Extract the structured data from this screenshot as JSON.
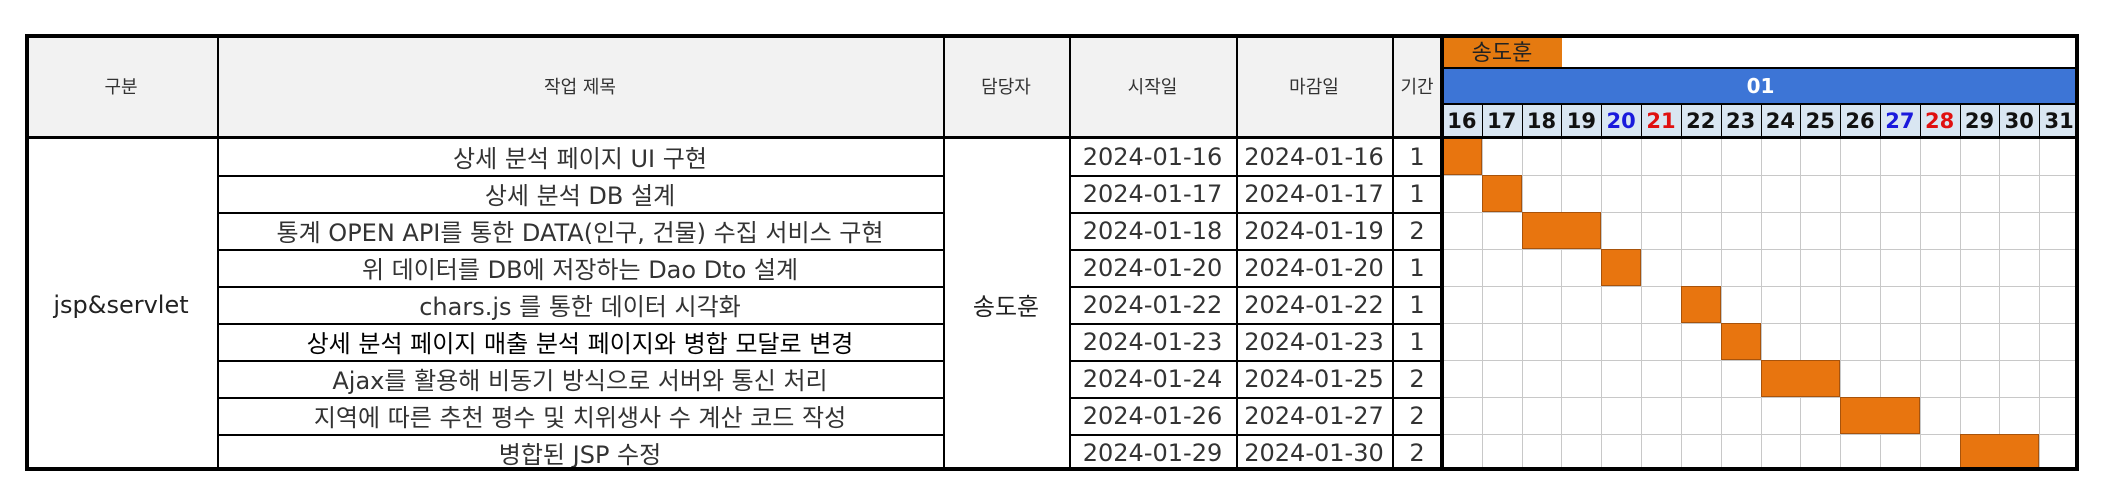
{
  "header": {
    "category": "구분",
    "task_title": "작업 제목",
    "assignee": "담당자",
    "start_date": "시작일",
    "due_date": "마감일",
    "duration": "기간",
    "gantt_owner": "송도훈",
    "month": "01",
    "days": [
      {
        "label": "16",
        "color": "#111111"
      },
      {
        "label": "17",
        "color": "#111111"
      },
      {
        "label": "18",
        "color": "#111111"
      },
      {
        "label": "19",
        "color": "#111111"
      },
      {
        "label": "20",
        "color": "#1a1adc"
      },
      {
        "label": "21",
        "color": "#e01010"
      },
      {
        "label": "22",
        "color": "#111111"
      },
      {
        "label": "23",
        "color": "#111111"
      },
      {
        "label": "24",
        "color": "#111111"
      },
      {
        "label": "25",
        "color": "#111111"
      },
      {
        "label": "26",
        "color": "#111111"
      },
      {
        "label": "27",
        "color": "#1a1adc"
      },
      {
        "label": "28",
        "color": "#e01010"
      },
      {
        "label": "29",
        "color": "#111111"
      },
      {
        "label": "30",
        "color": "#111111"
      },
      {
        "label": "31",
        "color": "#111111"
      }
    ]
  },
  "category": "jsp&servlet",
  "assignee": "송도훈",
  "colors": {
    "bar": "#e8750f",
    "month_header": "#3d75d6",
    "day_header": "#d9e6f2"
  },
  "tasks": [
    {
      "title": "상세 분석 페이지 UI 구현",
      "start": "2024-01-16",
      "end": "2024-01-16",
      "duration": "1"
    },
    {
      "title": "상세 분석 DB 설계",
      "start": "2024-01-17",
      "end": "2024-01-17",
      "duration": "1"
    },
    {
      "title": "통계 OPEN API를 통한 DATA(인구, 건물) 수집 서비스 구현",
      "start": "2024-01-18",
      "end": "2024-01-19",
      "duration": "2"
    },
    {
      "title": "위 데이터를 DB에 저장하는 Dao Dto 설계",
      "start": "2024-01-20",
      "end": "2024-01-20",
      "duration": "1"
    },
    {
      "title": "chars.js 를 통한 데이터 시각화",
      "start": "2024-01-22",
      "end": "2024-01-22",
      "duration": "1"
    },
    {
      "title": "상세 분석 페이지 매출 분석 페이지와 병합 모달로 변경",
      "start": "2024-01-23",
      "end": "2024-01-23",
      "duration": "1"
    },
    {
      "title": "Ajax를 활용해 비동기 방식으로 서버와 통신 처리",
      "start": "2024-01-24",
      "end": "2024-01-25",
      "duration": "2"
    },
    {
      "title": "지역에 따른 추천 평수 및 치위생사 수 계산 코드 작성",
      "start": "2024-01-26",
      "end": "2024-01-27",
      "duration": "2"
    },
    {
      "title": "병합된 JSP 수정",
      "start": "2024-01-29",
      "end": "2024-01-30",
      "duration": "2"
    }
  ]
}
